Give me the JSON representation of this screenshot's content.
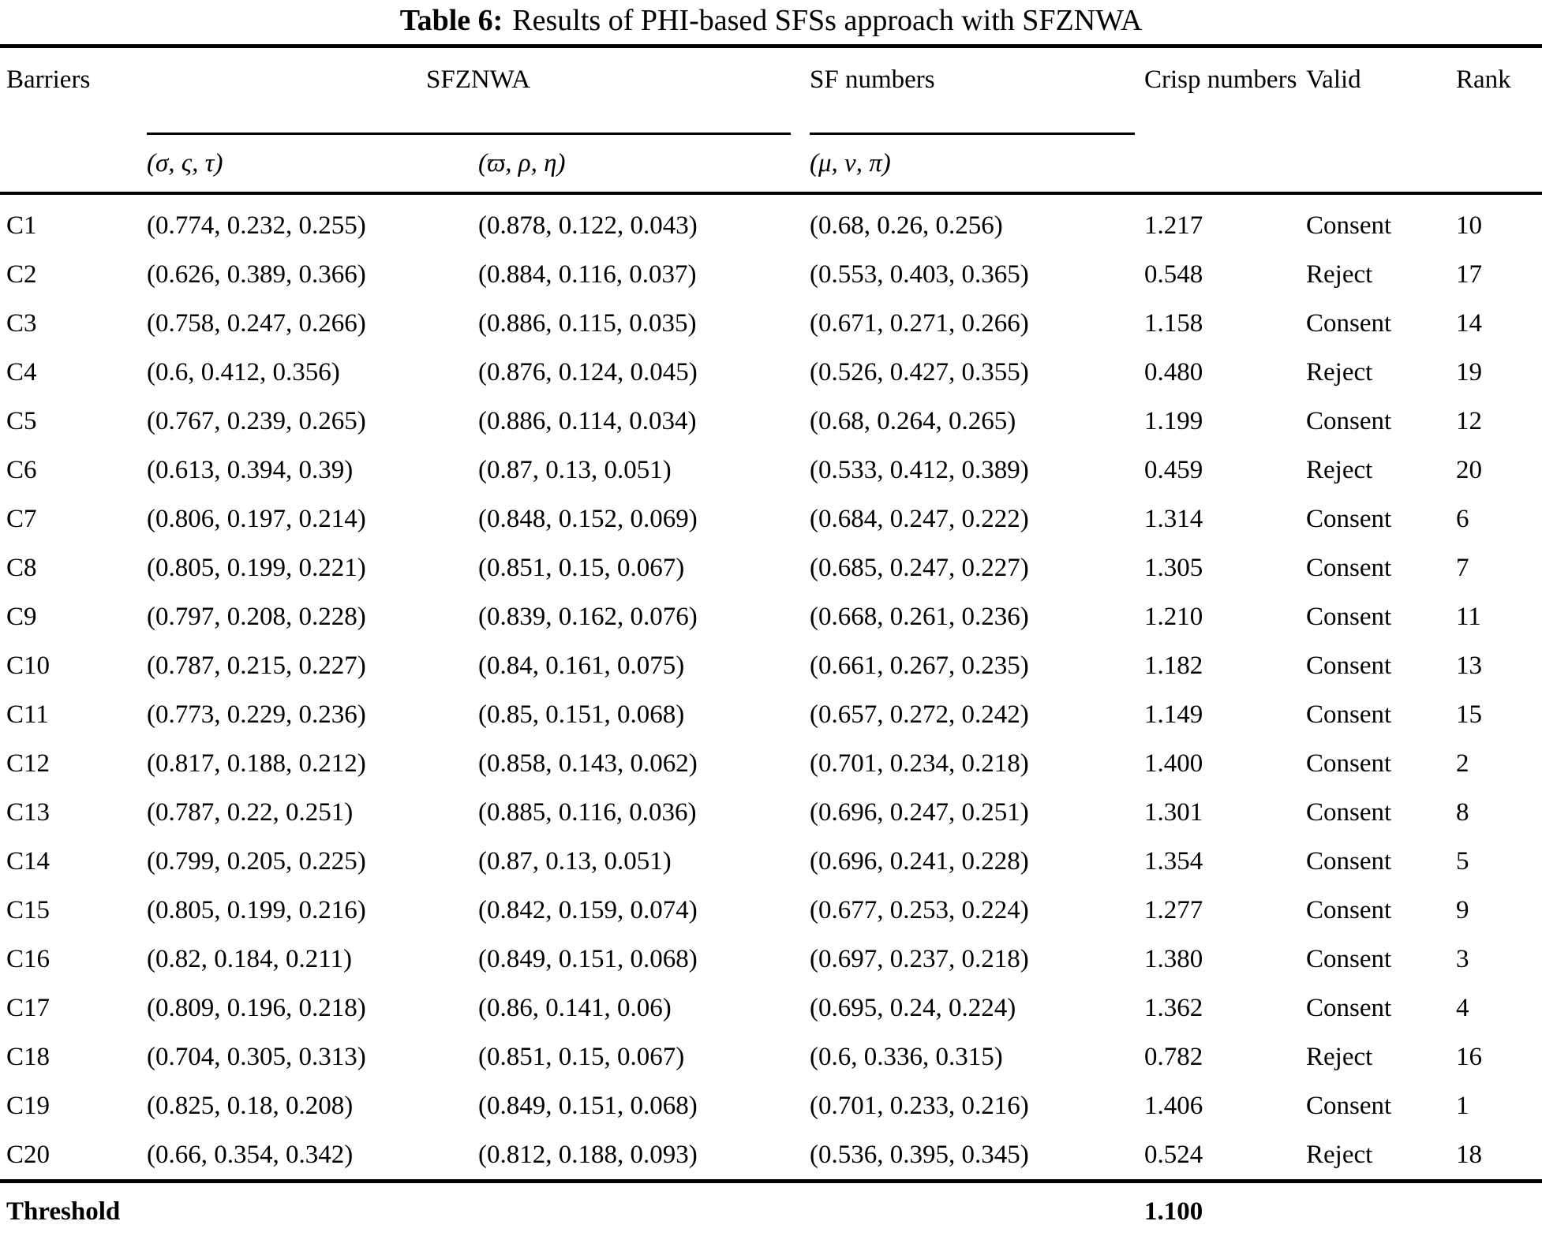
{
  "title": {
    "label": "Table 6:",
    "text": "Results of PHI-based SFSs approach with SFZNWA"
  },
  "header": {
    "barriers": "Barriers",
    "group_sfznwa": "SFZNWA",
    "group_sf_numbers": "SF numbers",
    "crisp": "Crisp numbers",
    "valid": "Valid",
    "rank": "Rank",
    "sub_tuple1": "(σ, ς, τ)",
    "sub_tuple2": "(ϖ, ρ, η)",
    "sub_tuple3": "(μ, ν, π)"
  },
  "rows": [
    {
      "barrier": "C1",
      "szt": "(0.774, 0.232, 0.255)",
      "wrh": "(0.878, 0.122, 0.043)",
      "mvp": "(0.68, 0.26, 0.256)",
      "crisp": "1.217",
      "valid": "Consent",
      "rank": "10"
    },
    {
      "barrier": "C2",
      "szt": "(0.626, 0.389, 0.366)",
      "wrh": "(0.884, 0.116, 0.037)",
      "mvp": "(0.553, 0.403, 0.365)",
      "crisp": "0.548",
      "valid": "Reject",
      "rank": "17"
    },
    {
      "barrier": "C3",
      "szt": "(0.758, 0.247, 0.266)",
      "wrh": "(0.886, 0.115, 0.035)",
      "mvp": "(0.671, 0.271, 0.266)",
      "crisp": "1.158",
      "valid": "Consent",
      "rank": "14"
    },
    {
      "barrier": "C4",
      "szt": "(0.6, 0.412, 0.356)",
      "wrh": "(0.876, 0.124, 0.045)",
      "mvp": "(0.526, 0.427, 0.355)",
      "crisp": "0.480",
      "valid": "Reject",
      "rank": "19"
    },
    {
      "barrier": "C5",
      "szt": "(0.767, 0.239, 0.265)",
      "wrh": "(0.886, 0.114, 0.034)",
      "mvp": "(0.68, 0.264, 0.265)",
      "crisp": "1.199",
      "valid": "Consent",
      "rank": "12"
    },
    {
      "barrier": "C6",
      "szt": "(0.613, 0.394, 0.39)",
      "wrh": "(0.87, 0.13, 0.051)",
      "mvp": "(0.533, 0.412, 0.389)",
      "crisp": "0.459",
      "valid": "Reject",
      "rank": "20"
    },
    {
      "barrier": "C7",
      "szt": "(0.806, 0.197, 0.214)",
      "wrh": "(0.848, 0.152, 0.069)",
      "mvp": "(0.684, 0.247, 0.222)",
      "crisp": "1.314",
      "valid": "Consent",
      "rank": "6"
    },
    {
      "barrier": "C8",
      "szt": "(0.805, 0.199, 0.221)",
      "wrh": "(0.851, 0.15, 0.067)",
      "mvp": "(0.685, 0.247, 0.227)",
      "crisp": "1.305",
      "valid": "Consent",
      "rank": "7"
    },
    {
      "barrier": "C9",
      "szt": "(0.797, 0.208, 0.228)",
      "wrh": "(0.839, 0.162, 0.076)",
      "mvp": "(0.668, 0.261, 0.236)",
      "crisp": "1.210",
      "valid": "Consent",
      "rank": "11"
    },
    {
      "barrier": "C10",
      "szt": "(0.787, 0.215, 0.227)",
      "wrh": "(0.84, 0.161, 0.075)",
      "mvp": "(0.661, 0.267, 0.235)",
      "crisp": "1.182",
      "valid": "Consent",
      "rank": "13"
    },
    {
      "barrier": "C11",
      "szt": "(0.773, 0.229, 0.236)",
      "wrh": "(0.85, 0.151, 0.068)",
      "mvp": "(0.657, 0.272, 0.242)",
      "crisp": "1.149",
      "valid": "Consent",
      "rank": "15"
    },
    {
      "barrier": "C12",
      "szt": "(0.817, 0.188, 0.212)",
      "wrh": "(0.858, 0.143, 0.062)",
      "mvp": "(0.701, 0.234, 0.218)",
      "crisp": "1.400",
      "valid": "Consent",
      "rank": "2"
    },
    {
      "barrier": "C13",
      "szt": "(0.787, 0.22, 0.251)",
      "wrh": "(0.885, 0.116, 0.036)",
      "mvp": "(0.696, 0.247, 0.251)",
      "crisp": "1.301",
      "valid": "Consent",
      "rank": "8"
    },
    {
      "barrier": "C14",
      "szt": "(0.799, 0.205, 0.225)",
      "wrh": "(0.87, 0.13, 0.051)",
      "mvp": "(0.696, 0.241, 0.228)",
      "crisp": "1.354",
      "valid": "Consent",
      "rank": "5"
    },
    {
      "barrier": "C15",
      "szt": "(0.805, 0.199, 0.216)",
      "wrh": "(0.842, 0.159, 0.074)",
      "mvp": "(0.677, 0.253, 0.224)",
      "crisp": "1.277",
      "valid": "Consent",
      "rank": "9"
    },
    {
      "barrier": "C16",
      "szt": "(0.82, 0.184, 0.211)",
      "wrh": "(0.849, 0.151, 0.068)",
      "mvp": "(0.697, 0.237, 0.218)",
      "crisp": "1.380",
      "valid": "Consent",
      "rank": "3"
    },
    {
      "barrier": "C17",
      "szt": "(0.809, 0.196, 0.218)",
      "wrh": "(0.86, 0.141, 0.06)",
      "mvp": "(0.695, 0.24, 0.224)",
      "crisp": "1.362",
      "valid": "Consent",
      "rank": "4"
    },
    {
      "barrier": "C18",
      "szt": "(0.704, 0.305, 0.313)",
      "wrh": "(0.851, 0.15, 0.067)",
      "mvp": "(0.6, 0.336, 0.315)",
      "crisp": "0.782",
      "valid": "Reject",
      "rank": "16"
    },
    {
      "barrier": "C19",
      "szt": "(0.825, 0.18, 0.208)",
      "wrh": "(0.849, 0.151, 0.068)",
      "mvp": "(0.701, 0.233, 0.216)",
      "crisp": "1.406",
      "valid": "Consent",
      "rank": "1"
    },
    {
      "barrier": "C20",
      "szt": "(0.66, 0.354, 0.342)",
      "wrh": "(0.812, 0.188, 0.093)",
      "mvp": "(0.536, 0.395, 0.345)",
      "crisp": "0.524",
      "valid": "Reject",
      "rank": "18"
    }
  ],
  "footer": {
    "label": "Threshold",
    "threshold_value": "1.100"
  }
}
